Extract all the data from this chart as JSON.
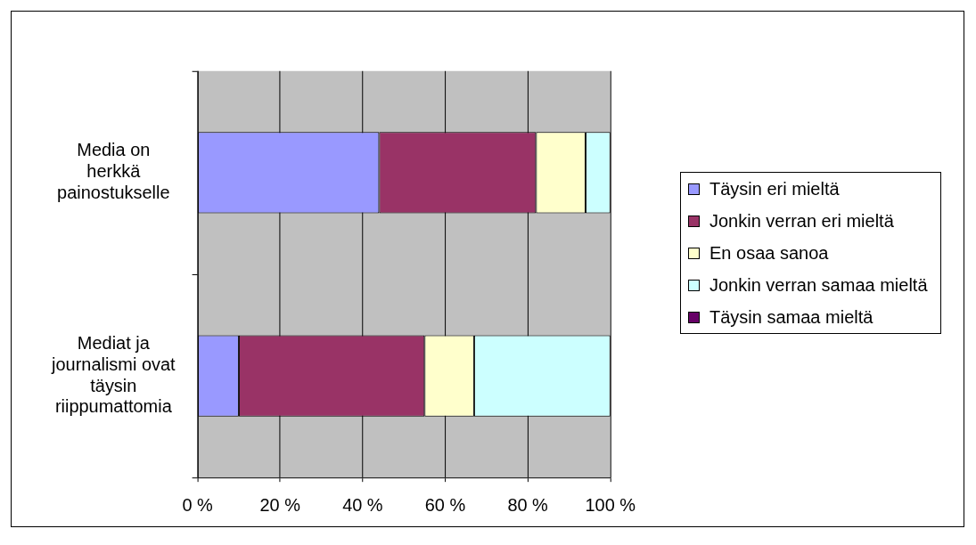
{
  "chart_data": {
    "type": "bar",
    "orientation": "horizontal",
    "stacked": true,
    "categories": [
      "Media on herkkä painostukselle",
      "Mediat ja journalismi ovat täysin riippumattomia"
    ],
    "series": [
      {
        "name": "Täysin eri mieltä",
        "color": "#9999ff",
        "values": [
          44,
          10
        ]
      },
      {
        "name": "Jonkin verran eri mieltä",
        "color": "#993366",
        "values": [
          38,
          45
        ]
      },
      {
        "name": "En osaa sanoa",
        "color": "#ffffcc",
        "values": [
          12,
          12
        ]
      },
      {
        "name": "Jonkin verran samaa mieltä",
        "color": "#ccffff",
        "values": [
          6,
          33
        ]
      },
      {
        "name": "Täysin samaa mieltä",
        "color": "#660066",
        "values": [
          0,
          0
        ]
      }
    ],
    "xlim": [
      0,
      100
    ],
    "xticks": [
      {
        "value": 0,
        "label": "0 %"
      },
      {
        "value": 20,
        "label": "20 %"
      },
      {
        "value": 40,
        "label": "40 %"
      },
      {
        "value": 60,
        "label": "60 %"
      },
      {
        "value": 80,
        "label": "80 %"
      },
      {
        "value": 100,
        "label": "100 %"
      }
    ],
    "grid": "x",
    "legend": "right"
  }
}
